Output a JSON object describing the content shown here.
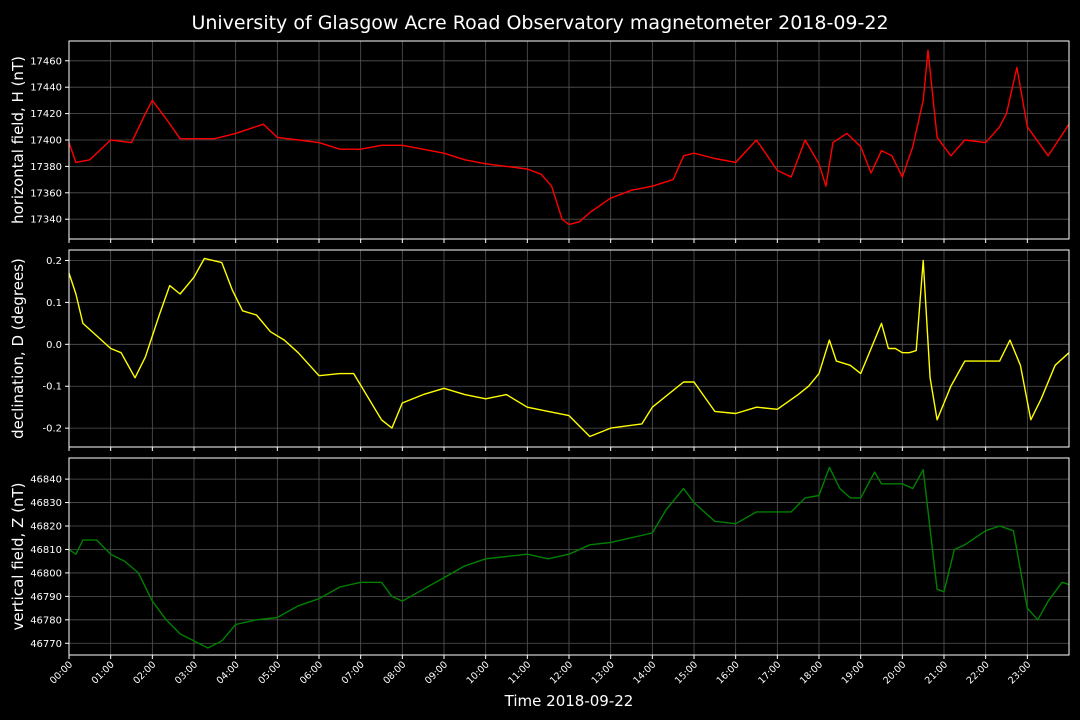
{
  "title": "University of Glasgow Acre Road Observatory magnetometer 2018-09-22",
  "xlabel": "Time 2018-09-22",
  "x_ticks": [
    "00:00",
    "01:00",
    "02:00",
    "03:00",
    "04:00",
    "05:00",
    "06:00",
    "07:00",
    "08:00",
    "09:00",
    "10:00",
    "11:00",
    "12:00",
    "13:00",
    "14:00",
    "15:00",
    "16:00",
    "17:00",
    "18:00",
    "19:00",
    "20:00",
    "21:00",
    "22:00",
    "23:00"
  ],
  "colors": {
    "background": "#000000",
    "axes": "#ffffff",
    "grid": "#555555",
    "H": "#ff0000",
    "D": "#ffff00",
    "Z": "#008000"
  },
  "chart_data": [
    {
      "type": "line",
      "ylabel": "horizontal field, H (nT)",
      "xlim": [
        "00:00",
        "24:00"
      ],
      "ylim": [
        17325,
        17475
      ],
      "yticks": [
        17340,
        17360,
        17380,
        17400,
        17420,
        17440,
        17460
      ],
      "grid": true,
      "color": "#ff0000",
      "series": [
        {
          "x": [
            "00:00",
            "00:10",
            "00:30",
            "01:00",
            "01:30",
            "01:50",
            "02:00",
            "02:20",
            "02:40",
            "03:00",
            "03:30",
            "04:00",
            "04:40",
            "05:00",
            "05:30",
            "06:00",
            "06:30",
            "07:00",
            "07:30",
            "08:00",
            "09:00",
            "09:30",
            "10:00",
            "10:30",
            "11:00",
            "11:20",
            "11:35",
            "11:50",
            "12:00",
            "12:15",
            "12:30",
            "13:00",
            "13:30",
            "14:00",
            "14:30",
            "14:45",
            "15:00",
            "15:30",
            "16:00",
            "16:30",
            "17:00",
            "17:20",
            "17:40",
            "18:00",
            "18:10",
            "18:20",
            "18:40",
            "19:00",
            "19:15",
            "19:30",
            "19:45",
            "20:00",
            "20:15",
            "20:30",
            "20:37",
            "20:50",
            "21:10",
            "21:30",
            "22:00",
            "22:20",
            "22:30",
            "22:45",
            "23:00",
            "23:30",
            "24:00"
          ],
          "y": [
            17398,
            17383,
            17385,
            17400,
            17398,
            17420,
            17430,
            17416,
            17401,
            17401,
            17401,
            17405,
            17412,
            17402,
            17400,
            17398,
            17393,
            17393,
            17396,
            17396,
            17390,
            17385,
            17382,
            17380,
            17378,
            17374,
            17365,
            17340,
            17336,
            17338,
            17345,
            17356,
            17362,
            17365,
            17370,
            17388,
            17390,
            17386,
            17383,
            17400,
            17377,
            17372,
            17400,
            17382,
            17365,
            17398,
            17405,
            17395,
            17375,
            17392,
            17388,
            17372,
            17395,
            17430,
            17468,
            17402,
            17388,
            17400,
            17398,
            17410,
            17420,
            17455,
            17410,
            17388,
            17412
          ]
        }
      ]
    },
    {
      "type": "line",
      "ylabel": "declination, D (degrees)",
      "xlim": [
        "00:00",
        "24:00"
      ],
      "ylim": [
        -0.245,
        0.225
      ],
      "yticks": [
        -0.2,
        -0.1,
        0.0,
        0.1,
        0.2
      ],
      "grid": true,
      "color": "#ffff00",
      "series": [
        {
          "x": [
            "00:00",
            "00:10",
            "00:20",
            "00:40",
            "01:00",
            "01:15",
            "01:35",
            "01:50",
            "02:10",
            "02:25",
            "02:40",
            "03:00",
            "03:15",
            "03:40",
            "03:55",
            "04:10",
            "04:30",
            "04:50",
            "05:10",
            "05:30",
            "06:00",
            "06:30",
            "06:50",
            "07:30",
            "07:45",
            "08:00",
            "08:30",
            "09:00",
            "09:30",
            "10:00",
            "10:30",
            "11:00",
            "11:30",
            "12:00",
            "12:30",
            "13:00",
            "13:45",
            "14:00",
            "14:45",
            "15:00",
            "15:30",
            "16:00",
            "16:30",
            "17:00",
            "17:30",
            "17:45",
            "18:00",
            "18:15",
            "18:25",
            "18:45",
            "19:00",
            "19:30",
            "19:40",
            "19:50",
            "20:00",
            "20:10",
            "20:20",
            "20:30",
            "20:40",
            "20:50",
            "21:00",
            "21:10",
            "21:30",
            "21:45",
            "22:00",
            "22:20",
            "22:35",
            "22:50",
            "23:05",
            "23:20",
            "23:40",
            "24:00"
          ],
          "y": [
            0.17,
            0.12,
            0.05,
            0.02,
            -0.01,
            -0.02,
            -0.08,
            -0.03,
            0.07,
            0.14,
            0.12,
            0.16,
            0.205,
            0.195,
            0.13,
            0.08,
            0.07,
            0.03,
            0.01,
            -0.02,
            -0.075,
            -0.07,
            -0.07,
            -0.18,
            -0.2,
            -0.14,
            -0.12,
            -0.105,
            -0.12,
            -0.13,
            -0.12,
            -0.15,
            -0.16,
            -0.17,
            -0.22,
            -0.2,
            -0.19,
            -0.15,
            -0.09,
            -0.09,
            -0.16,
            -0.165,
            -0.15,
            -0.155,
            -0.12,
            -0.1,
            -0.07,
            0.01,
            -0.04,
            -0.05,
            -0.07,
            0.05,
            -0.01,
            -0.01,
            -0.02,
            -0.02,
            -0.015,
            0.2,
            -0.08,
            -0.18,
            -0.14,
            -0.1,
            -0.04,
            -0.04,
            -0.04,
            -0.04,
            0.01,
            -0.05,
            -0.18,
            -0.13,
            -0.05,
            -0.02
          ]
        }
      ]
    },
    {
      "type": "line",
      "ylabel": "vertical field, Z (nT)",
      "xlim": [
        "00:00",
        "24:00"
      ],
      "ylim": [
        46765,
        46849
      ],
      "yticks": [
        46770,
        46780,
        46790,
        46800,
        46810,
        46820,
        46830,
        46840
      ],
      "grid": true,
      "color": "#008000",
      "series": [
        {
          "x": [
            "00:00",
            "00:10",
            "00:20",
            "00:40",
            "01:00",
            "01:20",
            "01:40",
            "02:00",
            "02:20",
            "02:40",
            "03:00",
            "03:20",
            "03:40",
            "04:00",
            "04:30",
            "05:00",
            "05:30",
            "06:00",
            "06:30",
            "07:00",
            "07:30",
            "07:45",
            "08:00",
            "08:30",
            "09:00",
            "09:30",
            "10:00",
            "10:30",
            "11:00",
            "11:30",
            "12:00",
            "12:30",
            "13:00",
            "13:30",
            "14:00",
            "14:20",
            "14:45",
            "15:00",
            "15:30",
            "16:00",
            "16:30",
            "17:00",
            "17:20",
            "17:40",
            "18:00",
            "18:15",
            "18:30",
            "18:45",
            "19:00",
            "19:20",
            "19:30",
            "19:45",
            "20:00",
            "20:15",
            "20:30",
            "20:50",
            "21:00",
            "21:15",
            "21:30",
            "22:00",
            "22:20",
            "22:40",
            "23:00",
            "23:15",
            "23:30",
            "23:50",
            "24:00"
          ],
          "y": [
            46810,
            46808,
            46814,
            46814,
            46808,
            46805,
            46800,
            46788,
            46780,
            46774,
            46771,
            46768,
            46771,
            46778,
            46780,
            46781,
            46786,
            46789,
            46794,
            46796,
            46796,
            46790,
            46788,
            46793,
            46798,
            46803,
            46806,
            46807,
            46808,
            46806,
            46808,
            46812,
            46813,
            46815,
            46817,
            46827,
            46836,
            46830,
            46822,
            46821,
            46826,
            46826,
            46826,
            46832,
            46833,
            46845,
            46836,
            46832,
            46832,
            46843,
            46838,
            46838,
            46838,
            46836,
            46844,
            46793,
            46792,
            46810,
            46812,
            46818,
            46820,
            46818,
            46785,
            46780,
            46788,
            46796,
            46795
          ]
        }
      ]
    }
  ]
}
